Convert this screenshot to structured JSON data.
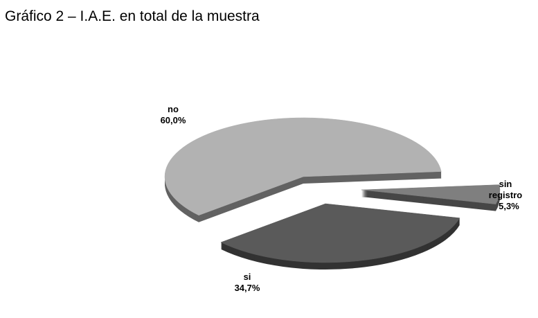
{
  "chart_data": {
    "type": "pie",
    "title": "Gráfico 2 – I.A.E. en total de la muestra",
    "categories": [
      "no",
      "si",
      "sin registro"
    ],
    "values": [
      60.0,
      34.7,
      5.3
    ],
    "value_labels": [
      "60,0%",
      "34,7%",
      "5,3%"
    ],
    "colors": [
      "#b2b2b2",
      "#5a5a5a",
      "#7f7f7f"
    ]
  }
}
